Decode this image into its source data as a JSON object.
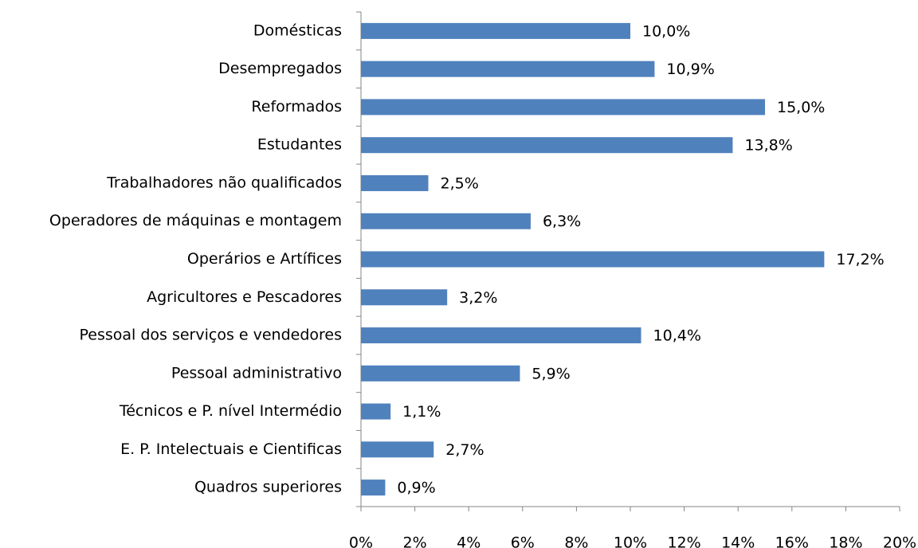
{
  "chart_data": {
    "type": "bar",
    "orientation": "horizontal",
    "categories": [
      "Domésticas",
      "Desempregados",
      "Reformados",
      "Estudantes",
      "Trabalhadores não qualificados",
      "Operadores de máquinas e montagem",
      "Operários e Artífices",
      "Agricultores e Pescadores",
      "Pessoal dos serviços e vendedores",
      "Pessoal administrativo",
      "Técnicos e P. nível Intermédio",
      "E. P. Intelectuais e Cientificas",
      "Quadros superiores"
    ],
    "values": [
      10.0,
      10.9,
      15.0,
      13.8,
      2.5,
      6.3,
      17.2,
      3.2,
      10.4,
      5.9,
      1.1,
      2.7,
      0.9
    ],
    "value_labels": [
      "10,0%",
      "10,9%",
      "15,0%",
      "13,8%",
      "2,5%",
      "6,3%",
      "17,2%",
      "3,2%",
      "10,4%",
      "5,9%",
      "1,1%",
      "2,7%",
      "0,9%"
    ],
    "color": "#4f81bd",
    "xlim": [
      0,
      20
    ],
    "xticks": [
      {
        "value": 0,
        "label": "0%"
      },
      {
        "value": 2,
        "label": "2%"
      },
      {
        "value": 4,
        "label": "4%"
      },
      {
        "value": 6,
        "label": "6%"
      },
      {
        "value": 8,
        "label": "8%"
      },
      {
        "value": 10,
        "label": "10%"
      },
      {
        "value": 12,
        "label": "12%"
      },
      {
        "value": 14,
        "label": "14%"
      },
      {
        "value": 16,
        "label": "16%"
      },
      {
        "value": 18,
        "label": "18%"
      },
      {
        "value": 20,
        "label": "20%"
      }
    ],
    "grid": false
  }
}
